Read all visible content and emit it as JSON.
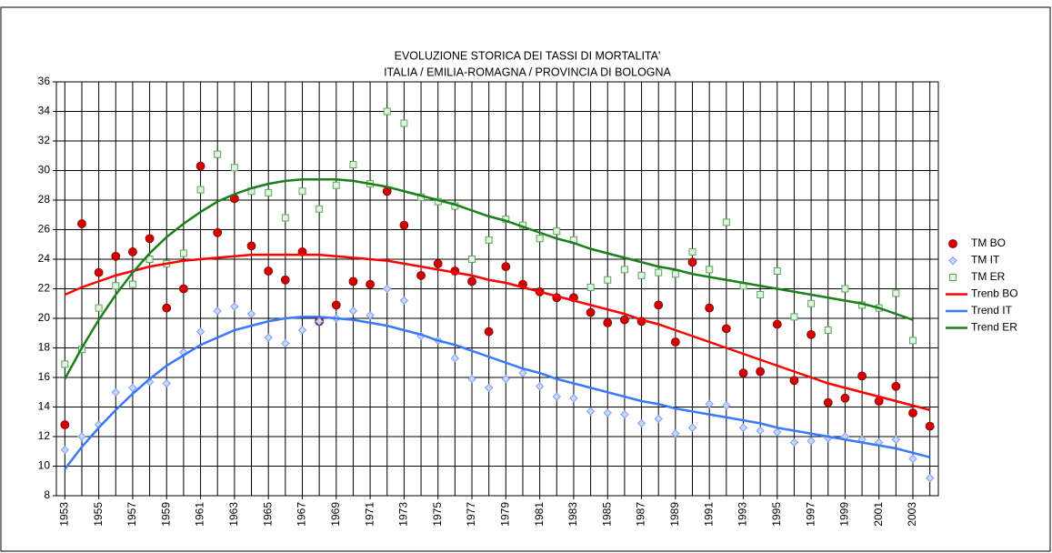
{
  "chart_data": {
    "type": "scatter",
    "title": "EVOLUZIONE STORICA DEI TASSI DI MORTALITA'",
    "subtitle": "ITALIA / EMILIA-ROMAGNA / PROVINCIA DI BOLOGNA",
    "x": [
      1953,
      1954,
      1955,
      1956,
      1957,
      1958,
      1959,
      1960,
      1961,
      1962,
      1963,
      1964,
      1965,
      1966,
      1967,
      1968,
      1969,
      1970,
      1971,
      1972,
      1973,
      1974,
      1975,
      1976,
      1977,
      1978,
      1979,
      1980,
      1981,
      1982,
      1983,
      1984,
      1985,
      1986,
      1987,
      1988,
      1989,
      1990,
      1991,
      1992,
      1993,
      1994,
      1995,
      1996,
      1997,
      1998,
      1999,
      2000,
      2001,
      2002,
      2003,
      2004
    ],
    "xlim": [
      1952.5,
      2004.5
    ],
    "xticks": [
      1953,
      1955,
      1957,
      1959,
      1961,
      1963,
      1965,
      1967,
      1969,
      1971,
      1973,
      1975,
      1977,
      1979,
      1981,
      1983,
      1985,
      1987,
      1989,
      1991,
      1993,
      1995,
      1997,
      1999,
      2001,
      2003
    ],
    "ylim": [
      8,
      36
    ],
    "yticks": [
      8,
      10,
      12,
      14,
      16,
      18,
      20,
      22,
      24,
      26,
      28,
      30,
      32,
      34,
      36
    ],
    "grid": true,
    "legend": "right",
    "series": [
      {
        "name": "TM BO",
        "mode": "markers",
        "marker": "circle",
        "color": "#d40000",
        "values": [
          12.8,
          26.4,
          23.1,
          24.2,
          24.5,
          25.4,
          20.7,
          22.0,
          30.3,
          25.8,
          28.1,
          24.9,
          23.2,
          22.6,
          24.5,
          19.8,
          20.9,
          22.5,
          22.3,
          28.6,
          26.3,
          22.9,
          23.7,
          23.2,
          22.5,
          19.1,
          23.5,
          22.3,
          21.8,
          21.4,
          21.4,
          20.4,
          19.7,
          19.9,
          19.8,
          20.9,
          18.4,
          23.8,
          20.7,
          19.3,
          16.3,
          16.4,
          19.6,
          15.8,
          18.9,
          14.3,
          14.6,
          16.1,
          14.4,
          15.4,
          13.6,
          12.7
        ]
      },
      {
        "name": "TM IT",
        "mode": "markers",
        "marker": "diamond",
        "color": "#7f9ff5",
        "values": [
          11.1,
          12.0,
          12.8,
          15.0,
          15.3,
          15.7,
          15.6,
          17.7,
          19.1,
          20.5,
          20.8,
          20.3,
          18.7,
          18.3,
          19.2,
          19.8,
          20.0,
          20.5,
          20.2,
          22.0,
          21.2,
          18.8,
          18.5,
          17.3,
          15.9,
          15.3,
          15.9,
          16.3,
          15.4,
          14.7,
          14.6,
          13.7,
          13.6,
          13.5,
          12.9,
          13.2,
          12.2,
          12.6,
          14.2,
          14.1,
          12.6,
          12.4,
          12.3,
          11.6,
          11.7,
          11.9,
          12.0,
          11.8,
          11.6,
          11.8,
          10.5,
          9.2
        ]
      },
      {
        "name": "TM ER",
        "mode": "markers",
        "marker": "square",
        "color": "#5aa85a",
        "values": [
          16.9,
          17.9,
          20.7,
          22.2,
          22.3,
          24.0,
          23.7,
          24.4,
          28.7,
          31.1,
          30.2,
          28.6,
          28.5,
          26.8,
          28.6,
          27.4,
          29.0,
          30.4,
          29.1,
          34.0,
          33.2,
          28.2,
          27.9,
          27.6,
          24.0,
          25.3,
          26.7,
          26.3,
          25.4,
          25.9,
          25.3,
          22.1,
          22.6,
          23.3,
          22.9,
          23.1,
          23.0,
          24.5,
          23.3,
          26.5,
          22.2,
          21.6,
          23.2,
          20.1,
          21.0,
          19.2,
          22.0,
          20.9,
          20.7,
          21.7,
          18.5,
          null
        ]
      },
      {
        "name": "Trenb BO",
        "mode": "line",
        "color": "#ff0000",
        "values": [
          21.6,
          22.1,
          22.5,
          22.9,
          23.2,
          23.5,
          23.7,
          23.9,
          24.0,
          24.1,
          24.2,
          24.3,
          24.3,
          24.3,
          24.3,
          24.3,
          24.2,
          24.1,
          24.0,
          23.9,
          23.7,
          23.5,
          23.3,
          23.1,
          22.9,
          22.6,
          22.4,
          22.1,
          21.8,
          21.5,
          21.2,
          20.9,
          20.6,
          20.3,
          19.9,
          19.6,
          19.2,
          18.8,
          18.4,
          18.0,
          17.6,
          17.2,
          16.8,
          16.4,
          16.0,
          15.6,
          15.3,
          15.0,
          14.7,
          14.4,
          14.1,
          13.8
        ]
      },
      {
        "name": "Trend IT",
        "mode": "line",
        "color": "#3a78ff",
        "values": [
          9.8,
          11.3,
          12.6,
          13.8,
          14.9,
          15.9,
          16.8,
          17.5,
          18.2,
          18.7,
          19.2,
          19.5,
          19.8,
          20.0,
          20.1,
          20.1,
          20.0,
          19.9,
          19.7,
          19.5,
          19.2,
          18.9,
          18.5,
          18.2,
          17.8,
          17.4,
          17.0,
          16.6,
          16.3,
          15.9,
          15.6,
          15.3,
          15.0,
          14.7,
          14.4,
          14.2,
          13.9,
          13.7,
          13.5,
          13.3,
          13.1,
          12.9,
          12.6,
          12.4,
          12.2,
          12.0,
          11.8,
          11.6,
          11.4,
          11.2,
          10.9,
          10.6
        ]
      },
      {
        "name": "Trend ER",
        "mode": "line",
        "color": "#1b7f1b",
        "values": [
          15.9,
          18.0,
          19.9,
          21.6,
          23.1,
          24.4,
          25.5,
          26.4,
          27.2,
          27.9,
          28.4,
          28.8,
          29.1,
          29.3,
          29.4,
          29.4,
          29.4,
          29.3,
          29.1,
          28.9,
          28.6,
          28.3,
          28.0,
          27.7,
          27.3,
          26.9,
          26.6,
          26.2,
          25.8,
          25.4,
          25.1,
          24.7,
          24.4,
          24.1,
          23.8,
          23.5,
          23.3,
          23.0,
          22.8,
          22.6,
          22.4,
          22.2,
          22.0,
          21.8,
          21.6,
          21.4,
          21.2,
          21.0,
          20.7,
          20.3,
          19.9,
          null
        ]
      }
    ]
  }
}
